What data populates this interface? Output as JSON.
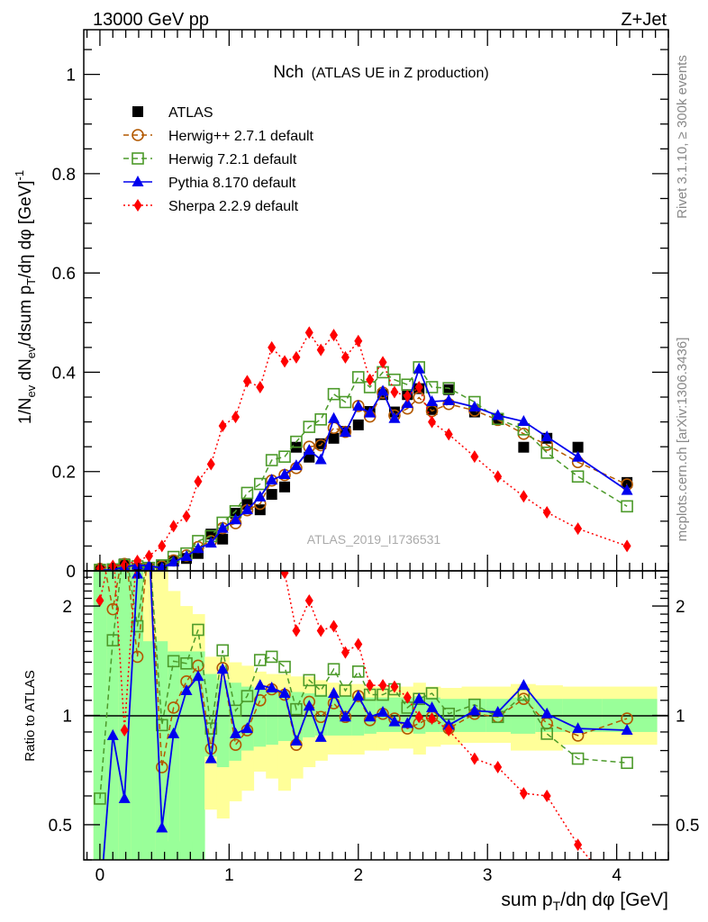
{
  "header": {
    "left": "13000 GeV pp",
    "right": "Z+Jet"
  },
  "side_text": {
    "rivet": "Rivet 3.1.10, ≥ 300k events",
    "mcplots": "mcplots.cern.ch [arXiv:1306.3436]"
  },
  "watermark": "ATLAS_2019_I1736531",
  "chart_data": {
    "type": "line",
    "title": {
      "main": "Nch",
      "sub": "(ATLAS UE in Z production)"
    },
    "ylabel_parts": [
      "1/N",
      "ev",
      " dN",
      "ev",
      "/dsum p",
      "T",
      "/dη dφ  [GeV]",
      "-1"
    ],
    "xlabel_parts": [
      "sum p",
      "T",
      "/dη dφ [GeV]"
    ],
    "ratio_ylabel": "Ratio to ATLAS",
    "xlim": [
      -0.125,
      4.4
    ],
    "ylim": [
      0,
      1.09
    ],
    "ratio_ylim": [
      0.4,
      2.5
    ],
    "ratio_scale": "log",
    "xticks": [
      "0",
      "1",
      "2",
      "3",
      "4"
    ],
    "yticks": [
      "0",
      "0.2",
      "0.4",
      "0.6",
      "0.8",
      "1"
    ],
    "ratio_yticks": [
      "0.5",
      "1",
      "2"
    ],
    "legend_position": "top-left",
    "x": [
      0.0,
      0.1,
      0.19,
      0.29,
      0.38,
      0.48,
      0.57,
      0.67,
      0.76,
      0.86,
      0.95,
      1.05,
      1.14,
      1.24,
      1.33,
      1.43,
      1.52,
      1.62,
      1.71,
      1.81,
      1.9,
      2.0,
      2.09,
      2.19,
      2.28,
      2.38,
      2.47,
      2.57,
      2.7,
      2.9,
      3.08,
      3.28,
      3.46,
      3.7,
      4.08
    ],
    "bin_edges_ends": [
      -0.05,
      4.31
    ],
    "series": [
      {
        "name": "ATLAS",
        "color": "#000000",
        "marker": "square",
        "line": "none",
        "values": [
          0.003,
          0.002,
          0.014,
          0.005,
          0.004,
          0.012,
          0.02,
          0.025,
          0.035,
          0.074,
          0.064,
          0.116,
          0.134,
          0.123,
          0.154,
          0.169,
          0.249,
          0.229,
          0.256,
          0.267,
          0.281,
          0.294,
          0.321,
          0.355,
          0.32,
          0.355,
          0.367,
          0.325,
          0.365,
          0.32,
          0.307,
          0.249,
          0.267,
          0.249,
          0.178
        ],
        "ratio": null
      },
      {
        "name": "Herwig++ 2.7.1 default",
        "color": "#b35900",
        "marker": "open-circle",
        "line": "dashed",
        "values": [
          0.004,
          0.004,
          0.014,
          0.007,
          0.005,
          0.009,
          0.021,
          0.031,
          0.048,
          0.06,
          0.086,
          0.096,
          0.122,
          0.135,
          0.182,
          0.193,
          0.207,
          0.25,
          0.253,
          0.288,
          0.28,
          0.332,
          0.311,
          0.359,
          0.313,
          0.327,
          0.349,
          0.322,
          0.336,
          0.323,
          0.304,
          0.276,
          0.254,
          0.219,
          0.174
        ],
        "ratio": [
          3.0,
          1.96,
          3.0,
          1.45,
          3.0,
          0.72,
          1.05,
          1.24,
          1.37,
          0.81,
          1.35,
          0.83,
          0.91,
          1.1,
          1.18,
          1.14,
          0.83,
          1.09,
          0.99,
          1.08,
          0.99,
          1.13,
          0.97,
          1.01,
          0.98,
          0.92,
          0.95,
          0.99,
          0.92,
          1.01,
          0.99,
          1.11,
          0.95,
          0.88,
          0.98
        ]
      },
      {
        "name": "Herwig 7.2.1 default",
        "color": "#4c9a2a",
        "marker": "open-square",
        "line": "dashed",
        "values": [
          0.002,
          0.003,
          0.012,
          0.009,
          0.006,
          0.011,
          0.028,
          0.035,
          0.06,
          0.07,
          0.097,
          0.12,
          0.157,
          0.175,
          0.223,
          0.23,
          0.26,
          0.29,
          0.305,
          0.356,
          0.34,
          0.39,
          0.37,
          0.4,
          0.385,
          0.375,
          0.41,
          0.37,
          0.368,
          0.34,
          0.306,
          0.285,
          0.238,
          0.19,
          0.13
        ],
        "ratio": [
          0.59,
          1.61,
          3.0,
          1.76,
          3.0,
          0.94,
          1.41,
          1.39,
          1.72,
          0.92,
          1.51,
          1.03,
          1.13,
          1.42,
          1.45,
          1.36,
          1.04,
          1.25,
          1.17,
          1.34,
          1.17,
          1.32,
          1.14,
          1.14,
          1.18,
          1.05,
          1.11,
          1.15,
          1.01,
          1.07,
          0.99,
          1.14,
          0.89,
          0.76,
          0.74
        ]
      },
      {
        "name": "Pythia 8.170 default",
        "color": "#0000ee",
        "marker": "triangle",
        "line": "solid",
        "values": [
          0.001,
          0.002,
          0.008,
          0.012,
          0.01,
          0.006,
          0.018,
          0.029,
          0.045,
          0.056,
          0.086,
          0.103,
          0.123,
          0.149,
          0.183,
          0.194,
          0.212,
          0.243,
          0.224,
          0.307,
          0.279,
          0.332,
          0.318,
          0.362,
          0.307,
          0.337,
          0.407,
          0.341,
          0.343,
          0.33,
          0.313,
          0.301,
          0.27,
          0.229,
          0.162
        ],
        "ratio": [
          0.3,
          0.88,
          0.59,
          2.45,
          3.0,
          0.49,
          0.89,
          1.17,
          1.28,
          0.76,
          1.34,
          0.89,
          0.92,
          1.21,
          1.19,
          1.15,
          0.85,
          1.06,
          0.87,
          1.15,
          0.99,
          1.13,
          0.99,
          1.02,
          0.96,
          0.95,
          1.11,
          1.05,
          0.94,
          1.03,
          1.02,
          1.21,
          1.01,
          0.92,
          0.91
        ]
      },
      {
        "name": "Sherpa 2.2.9 default",
        "color": "#ff0000",
        "marker": "diamond",
        "line": "dotted",
        "values": [
          0.005,
          0.01,
          0.012,
          0.02,
          0.03,
          0.05,
          0.09,
          0.11,
          0.18,
          0.215,
          0.292,
          0.31,
          0.382,
          0.37,
          0.45,
          0.422,
          0.43,
          0.48,
          0.445,
          0.475,
          0.43,
          0.463,
          0.385,
          0.42,
          0.36,
          0.352,
          0.37,
          0.3,
          0.275,
          0.23,
          0.19,
          0.15,
          0.118,
          0.085,
          0.05
        ],
        "ratio": [
          2.07,
          3.0,
          0.91,
          3.0,
          3.0,
          3.0,
          3.0,
          3.0,
          3.0,
          3.0,
          3.0,
          3.0,
          3.0,
          3.0,
          3.0,
          2.47,
          1.71,
          2.07,
          1.71,
          1.76,
          1.49,
          1.57,
          1.21,
          1.21,
          1.2,
          1.12,
          0.99,
          0.98,
          0.91,
          0.76,
          0.72,
          0.61,
          0.6,
          0.44,
          0.3
        ]
      }
    ],
    "ratio_bands": {
      "green_color": "#99ff99",
      "yellow_color": "#ffff99",
      "green_lo": [
        0.4,
        0.4,
        0.4,
        0.4,
        0.4,
        0.4,
        0.4,
        0.4,
        0.4,
        0.77,
        0.72,
        0.75,
        0.8,
        0.82,
        0.83,
        0.85,
        0.85,
        0.87,
        0.88,
        0.88,
        0.88,
        0.88,
        0.89,
        0.9,
        0.9,
        0.9,
        0.89,
        0.9,
        0.9,
        0.9,
        0.9,
        0.89,
        0.9,
        0.9,
        0.9
      ],
      "green_hi": [
        2.5,
        2.5,
        2.5,
        2.5,
        1.6,
        1.6,
        1.5,
        1.5,
        1.5,
        1.3,
        1.25,
        1.23,
        1.2,
        1.18,
        1.18,
        1.17,
        1.16,
        1.15,
        1.14,
        1.13,
        1.13,
        1.13,
        1.12,
        1.12,
        1.12,
        1.12,
        1.13,
        1.12,
        1.11,
        1.11,
        1.11,
        1.12,
        1.11,
        1.11,
        1.11
      ],
      "yellow_lo": [
        0.4,
        0.4,
        0.4,
        0.4,
        0.4,
        0.4,
        0.45,
        0.45,
        0.45,
        0.55,
        0.52,
        0.58,
        0.62,
        0.7,
        0.67,
        0.62,
        0.67,
        0.72,
        0.75,
        0.78,
        0.78,
        0.78,
        0.8,
        0.8,
        0.81,
        0.81,
        0.78,
        0.82,
        0.83,
        0.84,
        0.84,
        0.8,
        0.8,
        0.83,
        0.83
      ],
      "yellow_hi": [
        2.5,
        2.5,
        2.5,
        2.5,
        2.5,
        2.5,
        2.2,
        2.0,
        1.9,
        1.45,
        1.45,
        1.4,
        1.37,
        1.32,
        1.3,
        1.3,
        1.28,
        1.28,
        1.25,
        1.23,
        1.22,
        1.22,
        1.2,
        1.2,
        1.2,
        1.2,
        1.23,
        1.2,
        1.19,
        1.2,
        1.2,
        1.22,
        1.21,
        1.2,
        1.2
      ]
    }
  }
}
